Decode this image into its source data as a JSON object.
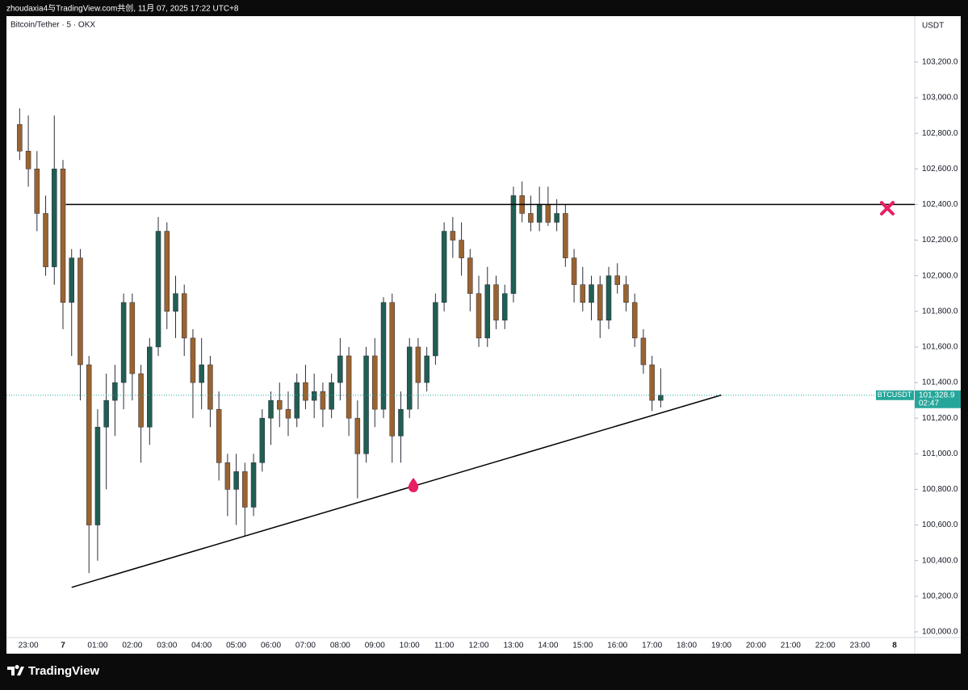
{
  "header": "zhoudaxia4与TradingView.com共创, 11月 07, 2025 17:22 UTC+8",
  "chart_data": {
    "type": "candlestick",
    "title": "Bitcoin/Tether · 5 · OKX",
    "y_axis_label": "USDT",
    "up_color": "#215e53",
    "down_color": "#9a6330",
    "x": [
      "22:45",
      "23:00",
      "23:15",
      "23:30",
      "23:45",
      "00:00",
      "00:15",
      "00:30",
      "00:45",
      "01:00",
      "01:15",
      "01:30",
      "01:45",
      "02:00",
      "02:15",
      "02:30",
      "02:45",
      "03:00",
      "03:15",
      "03:30",
      "03:45",
      "04:00",
      "04:15",
      "04:30",
      "04:45",
      "05:00",
      "05:15",
      "05:30",
      "05:45",
      "06:00",
      "06:15",
      "06:30",
      "06:45",
      "07:00",
      "07:15",
      "07:30",
      "07:45",
      "08:00",
      "08:15",
      "08:30",
      "08:45",
      "09:00",
      "09:15",
      "09:30",
      "09:45",
      "10:00",
      "10:15",
      "10:30",
      "10:45",
      "11:00",
      "11:15",
      "11:30",
      "11:45",
      "12:00",
      "12:15",
      "12:30",
      "12:45",
      "13:00",
      "13:15",
      "13:30",
      "13:45",
      "14:00",
      "14:15",
      "14:30",
      "14:45",
      "15:00",
      "15:15",
      "15:30",
      "15:45",
      "16:00",
      "16:15",
      "16:30",
      "16:45",
      "17:00",
      "17:15"
    ],
    "open": [
      102850,
      102700,
      102600,
      102350,
      102050,
      102600,
      101850,
      102100,
      101500,
      100600,
      101150,
      101300,
      101400,
      101850,
      101450,
      101150,
      101600,
      102250,
      101800,
      101900,
      101650,
      101400,
      101500,
      101250,
      100950,
      100800,
      100900,
      100700,
      100950,
      101200,
      101300,
      101250,
      101200,
      101400,
      101300,
      101350,
      101250,
      101400,
      101550,
      101200,
      101000,
      101550,
      101250,
      101850,
      101100,
      101250,
      101600,
      101400,
      101550,
      101850,
      102250,
      102200,
      102100,
      101900,
      101650,
      101950,
      101750,
      101900,
      102450,
      102350,
      102300,
      102400,
      102300,
      102350,
      102100,
      101950,
      101850,
      101950,
      101750,
      102000,
      101950,
      101850,
      101650,
      101500,
      101300
    ],
    "high": [
      102940,
      102900,
      102700,
      102450,
      102900,
      102650,
      102150,
      102150,
      101550,
      101250,
      101450,
      101500,
      101900,
      101900,
      101500,
      101650,
      102330,
      102300,
      102000,
      101950,
      101700,
      101650,
      101550,
      101350,
      101000,
      101000,
      100950,
      101000,
      101250,
      101350,
      101400,
      101350,
      101450,
      101500,
      101450,
      101400,
      101450,
      101650,
      101600,
      101300,
      101600,
      101650,
      101880,
      101900,
      101350,
      101650,
      101650,
      101600,
      101900,
      102300,
      102330,
      102300,
      102150,
      102000,
      102050,
      102000,
      101950,
      102500,
      102530,
      102450,
      102500,
      102500,
      102430,
      102400,
      102150,
      102050,
      102000,
      102000,
      102050,
      102070,
      102000,
      101900,
      101700,
      101550,
      101480
    ],
    "low": [
      102650,
      102500,
      102250,
      102000,
      101950,
      101700,
      101550,
      101300,
      100330,
      100400,
      100800,
      101100,
      101250,
      101300,
      100950,
      101050,
      101550,
      101700,
      101650,
      101550,
      101200,
      101250,
      101150,
      100850,
      100650,
      100600,
      100540,
      100650,
      100900,
      101050,
      101150,
      101100,
      101150,
      101250,
      101200,
      101150,
      101200,
      101300,
      101100,
      100750,
      100950,
      101150,
      101200,
      100950,
      100950,
      101200,
      101250,
      101350,
      101500,
      101800,
      102100,
      102000,
      101800,
      101600,
      101600,
      101700,
      101700,
      101850,
      102300,
      102250,
      102250,
      102280,
      102250,
      102050,
      101850,
      101800,
      101750,
      101650,
      101700,
      101900,
      101800,
      101600,
      101450,
      101240,
      101260
    ],
    "close": [
      102700,
      102600,
      102350,
      102050,
      102600,
      101850,
      102100,
      101500,
      100600,
      101150,
      101300,
      101400,
      101850,
      101450,
      101150,
      101600,
      102250,
      101800,
      101900,
      101650,
      101400,
      101500,
      101250,
      100950,
      100800,
      100900,
      100700,
      100950,
      101200,
      101300,
      101250,
      101200,
      101400,
      101300,
      101350,
      101250,
      101400,
      101550,
      101200,
      101000,
      101550,
      101250,
      101850,
      101100,
      101250,
      101600,
      101400,
      101550,
      101850,
      102250,
      102200,
      102100,
      101900,
      101650,
      101950,
      101750,
      101900,
      102450,
      102350,
      102300,
      102400,
      102300,
      102350,
      102100,
      101950,
      101850,
      101950,
      101750,
      102000,
      101950,
      101850,
      101650,
      101500,
      101300,
      101328.9
    ],
    "ylim": [
      99968,
      103458
    ],
    "yticks": [
      {
        "value": 100000,
        "label": "100,000.0"
      },
      {
        "value": 100200,
        "label": "100,200.0"
      },
      {
        "value": 100400,
        "label": "100,400.0"
      },
      {
        "value": 100600,
        "label": "100,600.0"
      },
      {
        "value": 100800,
        "label": "100,800.0"
      },
      {
        "value": 101000,
        "label": "101,000.0"
      },
      {
        "value": 101200,
        "label": "101,200.0"
      },
      {
        "value": 101400,
        "label": "101,400.0"
      },
      {
        "value": 101600,
        "label": "101,600.0"
      },
      {
        "value": 101800,
        "label": "101,800.0"
      },
      {
        "value": 102000,
        "label": "102,000.0"
      },
      {
        "value": 102200,
        "label": "102,200.0"
      },
      {
        "value": 102400,
        "label": "102,400.0"
      },
      {
        "value": 102600,
        "label": "102,600.0"
      },
      {
        "value": 102800,
        "label": "102,800.0"
      },
      {
        "value": 103000,
        "label": "103,000.0"
      },
      {
        "value": 103200,
        "label": "103,200.0"
      }
    ],
    "xticks": [
      "23:00",
      "7",
      "01:00",
      "02:00",
      "03:00",
      "04:00",
      "05:00",
      "06:00",
      "07:00",
      "08:00",
      "09:00",
      "10:00",
      "11:00",
      "12:00",
      "13:00",
      "14:00",
      "15:00",
      "16:00",
      "17:00",
      "18:00",
      "19:00",
      "20:00",
      "21:00",
      "22:00",
      "23:00",
      "8"
    ],
    "horizontal_line": {
      "from": "00:05",
      "price": 102400
    },
    "trend_line": {
      "from": "00:15",
      "from_price": 100250,
      "to": "19:00",
      "to_price": 101330
    },
    "symbol_label": "BTCUSDT",
    "last_price": {
      "value": 101328.9,
      "label": "101,328.9"
    },
    "countdown": "02:47"
  },
  "footer": "TradingView"
}
